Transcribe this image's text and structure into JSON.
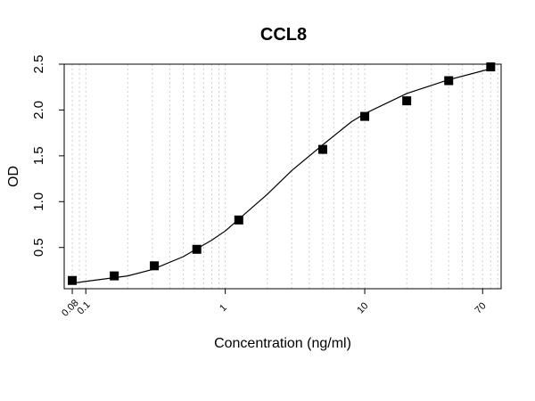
{
  "chart_data": {
    "type": "scatter",
    "title": "CCL8",
    "xlabel": "Concentration (ng/ml)",
    "ylabel": "OD",
    "x_scale": "log",
    "xlim": [
      0.07,
      95
    ],
    "ylim": [
      0.05,
      2.5
    ],
    "grid": "vertical-dotted",
    "x_ticks": [
      {
        "value": 0.08,
        "label": "0.08"
      },
      {
        "value": 0.1,
        "label": "0.1"
      },
      {
        "value": 1,
        "label": "1"
      },
      {
        "value": 10,
        "label": "10"
      },
      {
        "value": 70,
        "label": "70"
      }
    ],
    "y_ticks": [
      {
        "value": 0.5,
        "label": "0.5"
      },
      {
        "value": 1.0,
        "label": "1.0"
      },
      {
        "value": 1.5,
        "label": "1.5"
      },
      {
        "value": 2.0,
        "label": "2.0"
      },
      {
        "value": 2.5,
        "label": "2.5"
      }
    ],
    "series": [
      {
        "marker": "square",
        "color": "#000000",
        "x": [
          0.08,
          0.16,
          0.31,
          0.625,
          1.25,
          5,
          10,
          20,
          40,
          80
        ],
        "y": [
          0.14,
          0.19,
          0.3,
          0.48,
          0.8,
          1.57,
          1.93,
          2.1,
          2.32,
          2.47
        ]
      }
    ],
    "fit_curve": {
      "color": "#000000",
      "style": "solid",
      "x": [
        0.08,
        0.1,
        0.2,
        0.3,
        0.5,
        0.8,
        1,
        2,
        3,
        5,
        8,
        10,
        20,
        40,
        80
      ],
      "y": [
        0.11,
        0.13,
        0.19,
        0.26,
        0.4,
        0.58,
        0.68,
        1.08,
        1.34,
        1.62,
        1.87,
        1.96,
        2.18,
        2.33,
        2.45
      ]
    }
  }
}
